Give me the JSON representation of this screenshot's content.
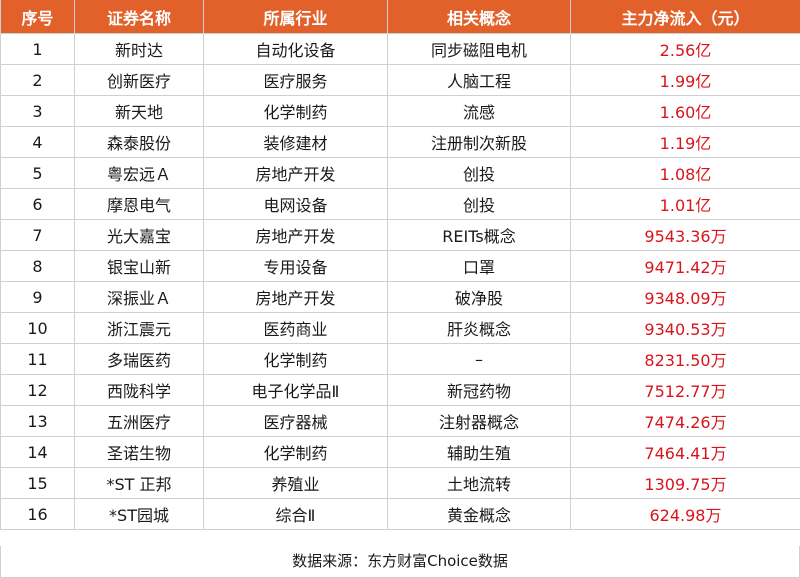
{
  "table": {
    "headers": [
      "序号",
      "证券名称",
      "所属行业",
      "相关概念",
      "主力净流入（元）"
    ],
    "rows": [
      [
        "1",
        "新时达",
        "自动化设备",
        "同步磁阻电机",
        "2.56亿"
      ],
      [
        "2",
        "创新医疗",
        "医疗服务",
        "人脑工程",
        "1.99亿"
      ],
      [
        "3",
        "新天地",
        "化学制药",
        "流感",
        "1.60亿"
      ],
      [
        "4",
        "森泰股份",
        "装修建材",
        "注册制次新股",
        "1.19亿"
      ],
      [
        "5",
        "粤宏远Ａ",
        "房地产开发",
        "创投",
        "1.08亿"
      ],
      [
        "6",
        "摩恩电气",
        "电网设备",
        "创投",
        "1.01亿"
      ],
      [
        "7",
        "光大嘉宝",
        "房地产开发",
        "REITs概念",
        "9543.36万"
      ],
      [
        "8",
        "银宝山新",
        "专用设备",
        "口罩",
        "9471.42万"
      ],
      [
        "9",
        "深振业Ａ",
        "房地产开发",
        "破净股",
        "9348.09万"
      ],
      [
        "10",
        "浙江震元",
        "医药商业",
        "肝炎概念",
        "9340.53万"
      ],
      [
        "11",
        "多瑞医药",
        "化学制药",
        "–",
        "8231.50万"
      ],
      [
        "12",
        "西陇科学",
        "电子化学品Ⅱ",
        "新冠药物",
        "7512.77万"
      ],
      [
        "13",
        "五洲医疗",
        "医疗器械",
        "注射器概念",
        "7474.26万"
      ],
      [
        "14",
        "圣诺生物",
        "化学制药",
        "辅助生殖",
        "7464.41万"
      ],
      [
        "15",
        "*ST 正邦",
        "养殖业",
        "土地流转",
        "1309.75万"
      ],
      [
        "16",
        "*ST园城",
        "综合Ⅱ",
        "黄金概念",
        "624.98万"
      ]
    ]
  },
  "footer": {
    "source": "数据来源：东方财富Choice数据"
  },
  "colors": {
    "header_bg": "#e2612a",
    "header_text": "#ffffff",
    "flow_text": "#d9141c",
    "border": "#d0d0d0"
  }
}
